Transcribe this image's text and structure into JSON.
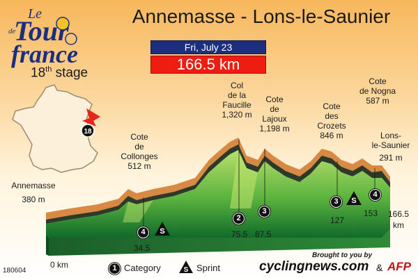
{
  "header": {
    "title": "Annemasse - Lons-le-Saunier",
    "date": "Fri, July 23",
    "distance": "166.5 km",
    "stage_label_num": "18",
    "stage_label_suffix": "th",
    "stage_label_word": "stage",
    "logo_text": "Le Tour de France"
  },
  "map": {
    "stage_badge": "18"
  },
  "climbs": [
    {
      "name_lines": [
        "Annemasse"
      ],
      "alt": "380 m"
    },
    {
      "name_lines": [
        "Cote",
        "de",
        "Collonges"
      ],
      "alt": "512 m"
    },
    {
      "name_lines": [
        "Col",
        "de la",
        "Faucille"
      ],
      "alt": "1,320 m"
    },
    {
      "name_lines": [
        "Cote",
        "de",
        "Lajoux"
      ],
      "alt": "1,198 m"
    },
    {
      "name_lines": [
        "Cote",
        "des",
        "Crozets"
      ],
      "alt": "846 m"
    },
    {
      "name_lines": [
        "Cote",
        "de Nogna"
      ],
      "alt": "587 m"
    },
    {
      "name_lines": [
        "Lons-",
        "le-Saunier"
      ],
      "alt": "291 m"
    }
  ],
  "markers": [
    {
      "type": "category",
      "label": "4",
      "km": "34.5"
    },
    {
      "type": "sprint",
      "label": "S",
      "km": ""
    },
    {
      "type": "category",
      "label": "2",
      "km": "75.5"
    },
    {
      "type": "category",
      "label": "3",
      "km": "87.5"
    },
    {
      "type": "category",
      "label": "3",
      "km": "127"
    },
    {
      "type": "sprint",
      "label": "S",
      "km": ""
    },
    {
      "type": "category",
      "label": "4",
      "km": "153"
    }
  ],
  "axis": {
    "start_km": "0 km",
    "end_km_value": "166.5",
    "end_km_unit": "km"
  },
  "legend": {
    "category_badge": "1",
    "category_label": "Category",
    "sprint_badge": "S",
    "sprint_label": "Sprint"
  },
  "footer": {
    "code": "180604",
    "brought": "Brought to you by",
    "cyclingnews": "cyclingnews.com",
    "amp": "&",
    "afp": "AFP"
  },
  "colors": {
    "profile_top": "#9ed35c",
    "profile_bottom": "#0f6b2a",
    "ridge": "#d88a45",
    "ridge_shadow": "#2b3a2b",
    "france_fill": "#fdf0db",
    "stage_arrow": "#e8261b",
    "date_bg": "#1c2f7f",
    "distance_bg": "#ef1c10"
  }
}
